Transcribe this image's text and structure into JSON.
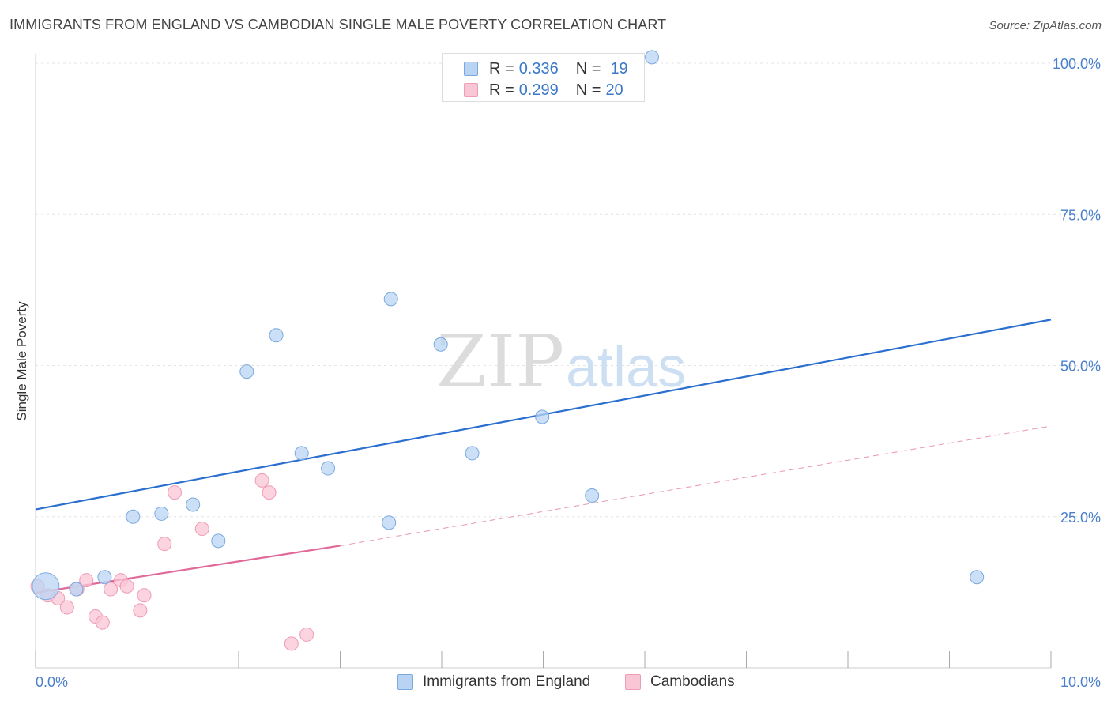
{
  "header": {
    "title": "IMMIGRANTS FROM ENGLAND VS CAMBODIAN SINGLE MALE POVERTY CORRELATION CHART",
    "source": "Source: ZipAtlas.com"
  },
  "watermark": {
    "zip": "ZIP",
    "atlas": "atlas"
  },
  "legend": {
    "items": [
      {
        "r_label": "R =",
        "r_value": "0.336",
        "n_label": "N =",
        "n_value": "19"
      },
      {
        "r_label": "R =",
        "r_value": "0.299",
        "n_label": "N =",
        "n_value": "20"
      }
    ]
  },
  "bottom_legend": {
    "england": "Immigrants from England",
    "cambodians": "Cambodians"
  },
  "colors": {
    "england_fill": "#b9d4f3",
    "england_stroke": "#7aa9df",
    "england_line": "#2a6fcf",
    "cambodian_fill": "#f9c6d6",
    "cambodian_stroke": "#ee9bb6",
    "cambodian_line": "#e0699a",
    "tick_text": "#4a7fcc",
    "grid": "#e3e3e3"
  },
  "chart_data": {
    "type": "scatter",
    "title": "IMMIGRANTS FROM ENGLAND VS CAMBODIAN SINGLE MALE POVERTY CORRELATION CHART",
    "xlabel": "",
    "ylabel": "Single Male Poverty",
    "xlim": [
      0,
      10
    ],
    "ylim": [
      0,
      100
    ],
    "x_tick_labels": [
      "0.0%",
      "10.0%"
    ],
    "y_ticks": [
      25,
      50,
      75,
      100
    ],
    "y_tick_labels": [
      "25.0%",
      "50.0%",
      "75.0%",
      "100.0%"
    ],
    "grid": true,
    "series": [
      {
        "name": "Immigrants from England",
        "r": 0.336,
        "n": 19,
        "points": [
          {
            "x": 0.1,
            "y": 13.5,
            "big": true
          },
          {
            "x": 0.4,
            "y": 13.0
          },
          {
            "x": 0.68,
            "y": 15.0
          },
          {
            "x": 0.96,
            "y": 25.0
          },
          {
            "x": 1.24,
            "y": 25.5
          },
          {
            "x": 1.55,
            "y": 27.0
          },
          {
            "x": 1.8,
            "y": 21.0
          },
          {
            "x": 2.08,
            "y": 49.0
          },
          {
            "x": 2.37,
            "y": 55.0
          },
          {
            "x": 2.62,
            "y": 35.5
          },
          {
            "x": 2.88,
            "y": 33.0
          },
          {
            "x": 3.5,
            "y": 61.0
          },
          {
            "x": 3.48,
            "y": 24.0
          },
          {
            "x": 3.99,
            "y": 53.5
          },
          {
            "x": 4.3,
            "y": 35.5
          },
          {
            "x": 4.99,
            "y": 41.5
          },
          {
            "x": 5.48,
            "y": 28.5
          },
          {
            "x": 6.07,
            "y": 101.0
          },
          {
            "x": 9.27,
            "y": 15.0
          }
        ],
        "trend": {
          "x0": 0,
          "y0": 26.2,
          "x1": 10,
          "y1": 57.6
        }
      },
      {
        "name": "Cambodians",
        "r": 0.299,
        "n": 20,
        "points": [
          {
            "x": 0.02,
            "y": 13.5
          },
          {
            "x": 0.12,
            "y": 12.0
          },
          {
            "x": 0.22,
            "y": 11.5
          },
          {
            "x": 0.31,
            "y": 10.0
          },
          {
            "x": 0.41,
            "y": 13.0
          },
          {
            "x": 0.5,
            "y": 14.5
          },
          {
            "x": 0.59,
            "y": 8.5
          },
          {
            "x": 0.66,
            "y": 7.5
          },
          {
            "x": 0.74,
            "y": 13.0
          },
          {
            "x": 0.84,
            "y": 14.5
          },
          {
            "x": 0.9,
            "y": 13.5
          },
          {
            "x": 1.03,
            "y": 9.5
          },
          {
            "x": 1.07,
            "y": 12.0
          },
          {
            "x": 1.27,
            "y": 20.5
          },
          {
            "x": 1.37,
            "y": 29.0
          },
          {
            "x": 1.64,
            "y": 23.0
          },
          {
            "x": 2.23,
            "y": 31.0
          },
          {
            "x": 2.3,
            "y": 29.0
          },
          {
            "x": 2.52,
            "y": 4.0
          },
          {
            "x": 2.67,
            "y": 5.5
          }
        ],
        "trend": {
          "x0": 0,
          "y0": 12.4,
          "x1": 3.0,
          "y1": 20.2
        },
        "trend_extension": {
          "x0": 3.0,
          "y0": 20.2,
          "x1": 10,
          "y1": 40.0
        }
      }
    ]
  }
}
